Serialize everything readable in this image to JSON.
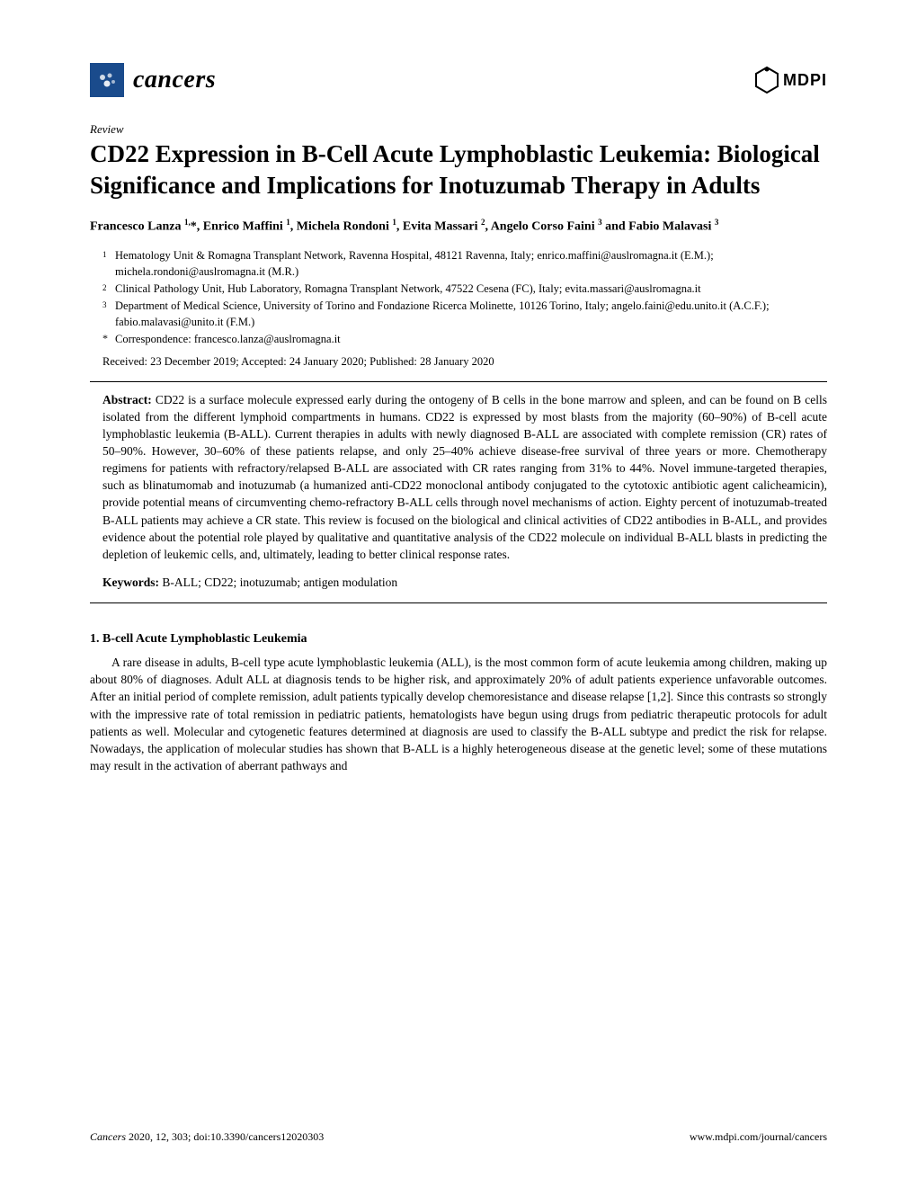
{
  "journal": {
    "name": "cancers",
    "publisher": "MDPI"
  },
  "article_type": "Review",
  "title": "CD22 Expression in B-Cell Acute Lymphoblastic Leukemia: Biological Significance and Implications for Inotuzumab Therapy in Adults",
  "authors_html": "Francesco Lanza <sup>1,</sup>*, Enrico Maffini <sup>1</sup>, Michela Rondoni <sup>1</sup>, Evita Massari <sup>2</sup>, Angelo Corso Faini <sup>3</sup> and Fabio Malavasi <sup>3</sup>",
  "affiliations": [
    {
      "marker": "1",
      "text": "Hematology Unit & Romagna Transplant Network, Ravenna Hospital, 48121 Ravenna, Italy; enrico.maffini@auslromagna.it (E.M.); michela.rondoni@auslromagna.it (M.R.)"
    },
    {
      "marker": "2",
      "text": "Clinical Pathology Unit, Hub Laboratory, Romagna Transplant Network, 47522 Cesena (FC), Italy; evita.massari@auslromagna.it"
    },
    {
      "marker": "3",
      "text": "Department of Medical Science, University of Torino and Fondazione Ricerca Molinette, 10126 Torino, Italy; angelo.faini@edu.unito.it (A.C.F.); fabio.malavasi@unito.it (F.M.)"
    }
  ],
  "correspondence": {
    "marker": "*",
    "text": "Correspondence: francesco.lanza@auslromagna.it"
  },
  "dates": "Received: 23 December 2019; Accepted: 24 January 2020; Published: 28 January 2020",
  "abstract_label": "Abstract:",
  "abstract": " CD22 is a surface molecule expressed early during the ontogeny of B cells in the bone marrow and spleen, and can be found on B cells isolated from the different lymphoid compartments in humans. CD22 is expressed by most blasts from the majority (60–90%) of B-cell acute lymphoblastic leukemia (B-ALL). Current therapies in adults with newly diagnosed B-ALL are associated with complete remission (CR) rates of 50–90%. However, 30–60% of these patients relapse, and only 25–40% achieve disease-free survival of three years or more. Chemotherapy regimens for patients with refractory/relapsed B-ALL are associated with CR rates ranging from 31% to 44%. Novel immune-targeted therapies, such as blinatumomab and inotuzumab (a humanized anti-CD22 monoclonal antibody conjugated to the cytotoxic antibiotic agent calicheamicin), provide potential means of circumventing chemo-refractory B-ALL cells through novel mechanisms of action. Eighty percent of inotuzumab-treated B-ALL patients may achieve a CR state. This review is focused on the biological and clinical activities of CD22 antibodies in B-ALL, and provides evidence about the potential role played by qualitative and quantitative analysis of the CD22 molecule on individual B-ALL blasts in predicting the depletion of leukemic cells, and, ultimately, leading to better clinical response rates.",
  "keywords_label": "Keywords:",
  "keywords": " B-ALL; CD22; inotuzumab; antigen modulation",
  "section1_heading": "1. B-cell Acute Lymphoblastic Leukemia",
  "section1_para": "A rare disease in adults, B-cell type acute lymphoblastic leukemia (ALL), is the most common form of acute leukemia among children, making up about 80% of diagnoses. Adult ALL at diagnosis tends to be higher risk, and approximately 20% of adult patients experience unfavorable outcomes. After an initial period of complete remission, adult patients typically develop chemoresistance and disease relapse [1,2]. Since this contrasts so strongly with the impressive rate of total remission in pediatric patients, hematologists have begun using drugs from pediatric therapeutic protocols for adult patients as well. Molecular and cytogenetic features determined at diagnosis are used to classify the B-ALL subtype and predict the risk for relapse. Nowadays, the application of molecular studies has shown that B-ALL is a highly heterogeneous disease at the genetic level; some of these mutations may result in the activation of aberrant pathways and",
  "footer": {
    "citation_journal": "Cancers",
    "citation_rest": " 2020, 12, 303; doi:10.3390/cancers12020303",
    "url": "www.mdpi.com/journal/cancers"
  },
  "colors": {
    "journal_icon_bg": "#1a4b8c",
    "text": "#000000",
    "background": "#ffffff"
  }
}
